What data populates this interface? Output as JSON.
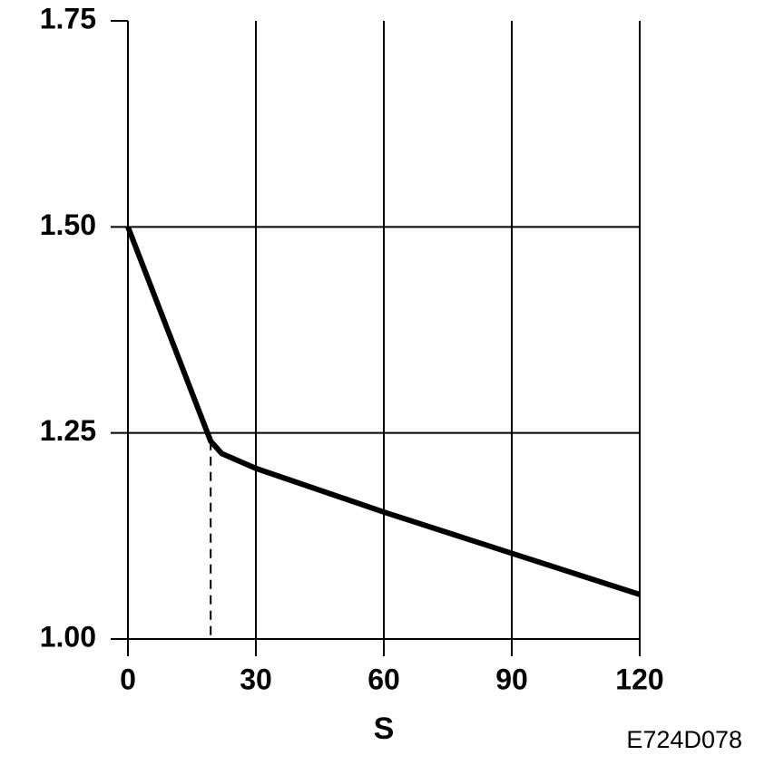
{
  "chart_data": {
    "type": "line",
    "x_label": "S",
    "annotation": "E724D078",
    "series": [
      {
        "color": "#000000",
        "x": [
          0,
          19.4,
          22,
          30,
          60,
          90,
          120
        ],
        "values": [
          1.5,
          1.24,
          1.225,
          1.207,
          1.154,
          1.104,
          1.054
        ]
      }
    ],
    "reference_line": {
      "x": 19.4,
      "y": 1.24
    },
    "xlim": [
      0,
      120
    ],
    "xticks": [
      0,
      30,
      60,
      90,
      120
    ],
    "ylim": [
      1.0,
      1.75
    ],
    "yticks": [
      {
        "value": 1.0,
        "label": "1.00"
      },
      {
        "value": 1.25,
        "label": "1.25"
      },
      {
        "value": 1.5,
        "label": "1.50"
      },
      {
        "value": 1.75,
        "label": "1.75"
      }
    ],
    "grid": true
  }
}
